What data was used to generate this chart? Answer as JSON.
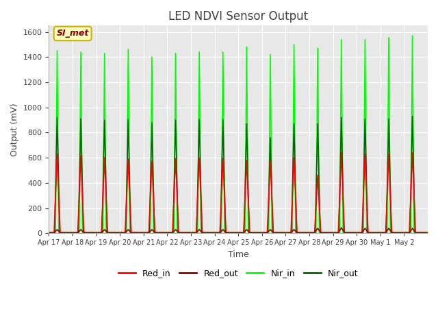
{
  "title": "LED NDVI Sensor Output",
  "xlabel": "Time",
  "ylabel": "Output (mV)",
  "ylim": [
    0,
    1650
  ],
  "yticks": [
    0,
    200,
    400,
    600,
    800,
    1000,
    1200,
    1400,
    1600
  ],
  "plot_bg_color": "#e8e8e8",
  "annotation_text": "SI_met",
  "annotation_bg": "#ffffc0",
  "annotation_border": "#c8b400",
  "annotation_text_color": "#8b0000",
  "series": {
    "Red_in": {
      "color": "#ff0000",
      "linewidth": 1.2
    },
    "Red_out": {
      "color": "#8b0000",
      "linewidth": 1.2
    },
    "Nir_in": {
      "color": "#00ff00",
      "linewidth": 1.2
    },
    "Nir_out": {
      "color": "#006400",
      "linewidth": 1.2
    }
  },
  "x_tick_labels": [
    "Apr 17",
    "Apr 18",
    "Apr 19",
    "Apr 20",
    "Apr 21",
    "Apr 22",
    "Apr 23",
    "Apr 24",
    "Apr 25",
    "Apr 26",
    "Apr 27",
    "Apr 28",
    "Apr 29",
    "Apr 30",
    "May 1",
    "May 2"
  ],
  "num_cycles": 16,
  "red_in_peaks": [
    630,
    620,
    600,
    590,
    575,
    595,
    600,
    595,
    580,
    575,
    600,
    460,
    640,
    630,
    630,
    640
  ],
  "red_out_peaks": [
    30,
    30,
    30,
    30,
    30,
    30,
    30,
    30,
    30,
    30,
    30,
    40,
    45,
    40,
    40,
    40
  ],
  "nir_in_peaks": [
    1450,
    1440,
    1430,
    1460,
    1400,
    1430,
    1440,
    1440,
    1480,
    1420,
    1500,
    1470,
    1540,
    1540,
    1555,
    1570
  ],
  "nir_out_peaks": [
    920,
    910,
    900,
    905,
    880,
    900,
    905,
    905,
    870,
    760,
    870,
    870,
    920,
    910,
    910,
    930
  ]
}
